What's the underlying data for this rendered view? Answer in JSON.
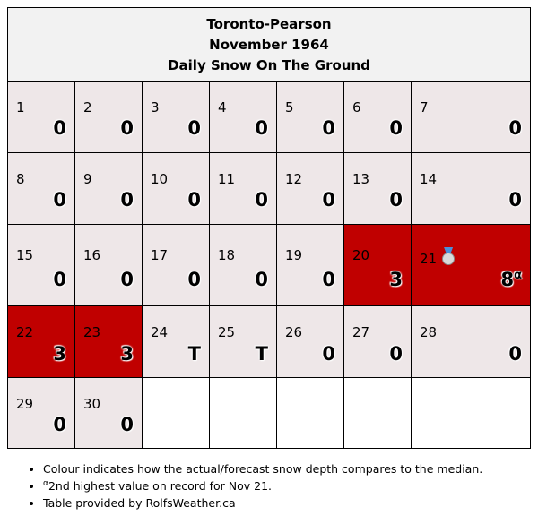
{
  "header": {
    "station": "Toronto-Pearson",
    "month": "November 1964",
    "title": "Daily Snow On The Ground"
  },
  "colors": {
    "normal": "#eee7e8",
    "above": "#c00000",
    "empty": "#ffffff"
  },
  "days": [
    {
      "day": "1",
      "value": "0"
    },
    {
      "day": "2",
      "value": "0"
    },
    {
      "day": "3",
      "value": "0"
    },
    {
      "day": "4",
      "value": "0"
    },
    {
      "day": "5",
      "value": "0"
    },
    {
      "day": "6",
      "value": "0"
    },
    {
      "day": "7",
      "value": "0"
    },
    {
      "day": "8",
      "value": "0"
    },
    {
      "day": "9",
      "value": "0"
    },
    {
      "day": "10",
      "value": "0"
    },
    {
      "day": "11",
      "value": "0"
    },
    {
      "day": "12",
      "value": "0"
    },
    {
      "day": "13",
      "value": "0"
    },
    {
      "day": "14",
      "value": "0"
    },
    {
      "day": "15",
      "value": "0"
    },
    {
      "day": "16",
      "value": "0"
    },
    {
      "day": "17",
      "value": "0"
    },
    {
      "day": "18",
      "value": "0"
    },
    {
      "day": "19",
      "value": "0"
    },
    {
      "day": "20",
      "value": "3",
      "highlight": "above"
    },
    {
      "day": "21",
      "value": "8",
      "sup": "α",
      "highlight": "above",
      "icon": "silver-medal-icon"
    },
    {
      "day": "22",
      "value": "3",
      "highlight": "above"
    },
    {
      "day": "23",
      "value": "3",
      "highlight": "above"
    },
    {
      "day": "24",
      "value": "T"
    },
    {
      "day": "25",
      "value": "T"
    },
    {
      "day": "26",
      "value": "0"
    },
    {
      "day": "27",
      "value": "0"
    },
    {
      "day": "28",
      "value": "0"
    },
    {
      "day": "29",
      "value": "0"
    },
    {
      "day": "30",
      "value": "0"
    }
  ],
  "notes": {
    "colour_note": "Colour indicates how the actual/forecast snow depth compares to the median.",
    "record_sup": "α",
    "record_note": "2nd highest value on record for Nov 21.",
    "credit": "Table provided by RolfsWeather.ca"
  }
}
